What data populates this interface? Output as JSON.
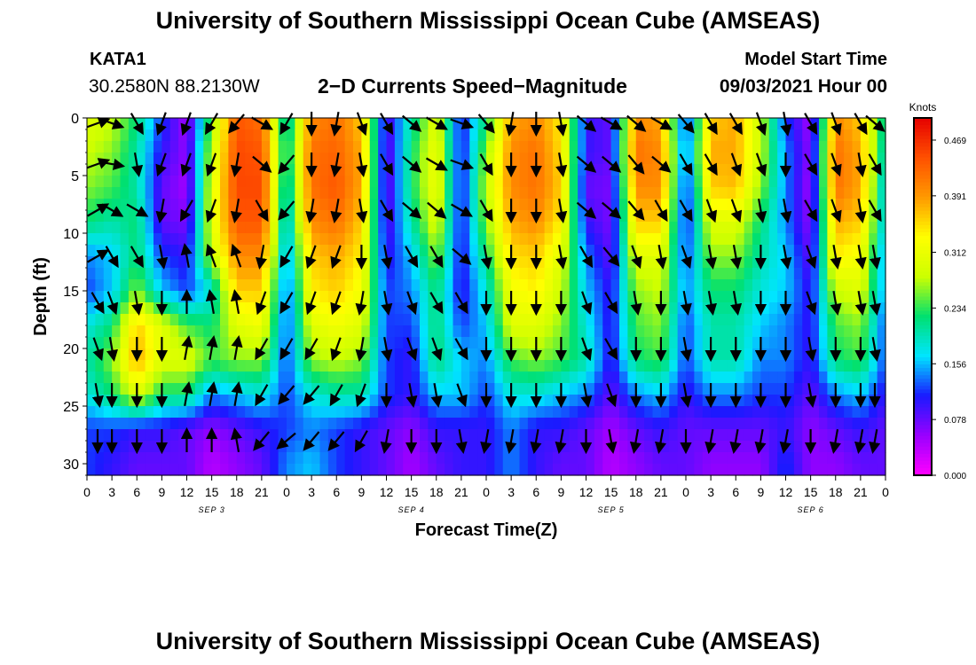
{
  "header": {
    "title": "University of Southern Mississippi Ocean Cube (AMSEAS)",
    "station": "KATA1",
    "coords": "30.2580N  88.2130W",
    "plot_title": "2−D Currents Speed−Magnitude",
    "model_label": "Model Start Time",
    "model_date": "09/03/2021 Hour 00"
  },
  "footer": {
    "title": "University of Southern Mississippi Ocean Cube (AMSEAS)"
  },
  "chart_data": {
    "type": "heatmap",
    "xlabel": "Forecast Time(Z)",
    "ylabel": "Depth (ft)",
    "x_ticks": [
      "0",
      "3",
      "6",
      "9",
      "12",
      "15",
      "18",
      "21",
      "0",
      "3",
      "6",
      "9",
      "12",
      "15",
      "18",
      "21",
      "0",
      "3",
      "6",
      "9",
      "12",
      "15",
      "18",
      "21",
      "0",
      "3",
      "6",
      "9",
      "12",
      "15",
      "18",
      "21",
      "0"
    ],
    "day_labels": [
      {
        "label": "SEP 3",
        "hour": 15
      },
      {
        "label": "SEP 4",
        "hour": 39
      },
      {
        "label": "SEP 5",
        "hour": 63
      },
      {
        "label": "SEP 6",
        "hour": 87
      }
    ],
    "x_range": [
      0,
      96
    ],
    "y_ticks": [
      0,
      5,
      10,
      15,
      20,
      25,
      30
    ],
    "y_range": [
      0,
      31
    ],
    "y_inverted": true,
    "colorbar": {
      "unit": "Knots",
      "ticks": [
        "0.469",
        "0.391",
        "0.312",
        "0.234",
        "0.156",
        "0.078",
        "0.000"
      ],
      "range": [
        0.0,
        0.5
      ],
      "colors": [
        "#ff00ff",
        "#9900ff",
        "#1a1aff",
        "#00e5ff",
        "#00e070",
        "#ccff00",
        "#ffff00",
        "#ff9900",
        "#ff5000",
        "#e60000"
      ]
    },
    "speed_grid": {
      "depths": [
        0,
        3,
        6,
        9,
        12,
        15,
        18,
        21,
        24,
        27,
        30
      ],
      "hours": [
        0,
        3,
        6,
        9,
        12,
        15,
        18,
        21,
        24,
        27,
        30,
        33,
        36,
        39,
        42,
        45,
        48,
        51,
        54,
        57,
        60,
        63,
        66,
        69,
        72,
        75,
        78,
        81,
        84,
        87,
        90,
        93,
        96
      ],
      "values": [
        [
          0.3,
          0.28,
          0.22,
          0.12,
          0.05,
          0.25,
          0.44,
          0.42,
          0.18,
          0.4,
          0.42,
          0.36,
          0.08,
          0.2,
          0.3,
          0.1,
          0.22,
          0.38,
          0.4,
          0.34,
          0.1,
          0.08,
          0.4,
          0.38,
          0.1,
          0.36,
          0.38,
          0.28,
          0.12,
          0.05,
          0.4,
          0.36,
          0.2
        ],
        [
          0.28,
          0.26,
          0.2,
          0.1,
          0.06,
          0.28,
          0.45,
          0.44,
          0.2,
          0.42,
          0.43,
          0.38,
          0.07,
          0.22,
          0.32,
          0.1,
          0.26,
          0.4,
          0.42,
          0.35,
          0.1,
          0.08,
          0.42,
          0.4,
          0.12,
          0.38,
          0.38,
          0.28,
          0.14,
          0.06,
          0.42,
          0.38,
          0.18
        ],
        [
          0.26,
          0.24,
          0.2,
          0.08,
          0.05,
          0.3,
          0.45,
          0.45,
          0.18,
          0.42,
          0.44,
          0.38,
          0.07,
          0.22,
          0.32,
          0.1,
          0.28,
          0.4,
          0.42,
          0.36,
          0.08,
          0.07,
          0.4,
          0.4,
          0.1,
          0.36,
          0.37,
          0.26,
          0.14,
          0.05,
          0.42,
          0.38,
          0.16
        ],
        [
          0.22,
          0.2,
          0.22,
          0.08,
          0.07,
          0.3,
          0.44,
          0.44,
          0.16,
          0.4,
          0.42,
          0.36,
          0.08,
          0.2,
          0.3,
          0.1,
          0.26,
          0.38,
          0.4,
          0.34,
          0.1,
          0.07,
          0.36,
          0.36,
          0.1,
          0.3,
          0.3,
          0.22,
          0.14,
          0.06,
          0.38,
          0.36,
          0.16
        ],
        [
          0.14,
          0.16,
          0.22,
          0.12,
          0.1,
          0.28,
          0.4,
          0.4,
          0.14,
          0.36,
          0.38,
          0.34,
          0.1,
          0.16,
          0.26,
          0.1,
          0.22,
          0.35,
          0.36,
          0.3,
          0.14,
          0.08,
          0.3,
          0.3,
          0.12,
          0.26,
          0.26,
          0.2,
          0.16,
          0.08,
          0.34,
          0.32,
          0.14
        ],
        [
          0.12,
          0.16,
          0.26,
          0.16,
          0.12,
          0.18,
          0.36,
          0.36,
          0.12,
          0.34,
          0.36,
          0.32,
          0.12,
          0.14,
          0.22,
          0.1,
          0.18,
          0.32,
          0.34,
          0.28,
          0.16,
          0.1,
          0.26,
          0.28,
          0.14,
          0.22,
          0.22,
          0.18,
          0.16,
          0.1,
          0.28,
          0.3,
          0.14
        ],
        [
          0.18,
          0.22,
          0.36,
          0.3,
          0.24,
          0.22,
          0.3,
          0.32,
          0.12,
          0.3,
          0.32,
          0.3,
          0.12,
          0.12,
          0.22,
          0.12,
          0.16,
          0.3,
          0.3,
          0.26,
          0.18,
          0.1,
          0.24,
          0.26,
          0.12,
          0.2,
          0.2,
          0.16,
          0.14,
          0.1,
          0.24,
          0.26,
          0.12
        ],
        [
          0.2,
          0.26,
          0.38,
          0.3,
          0.3,
          0.24,
          0.26,
          0.26,
          0.12,
          0.26,
          0.28,
          0.26,
          0.12,
          0.1,
          0.22,
          0.16,
          0.14,
          0.24,
          0.26,
          0.24,
          0.2,
          0.1,
          0.22,
          0.24,
          0.12,
          0.2,
          0.2,
          0.14,
          0.14,
          0.1,
          0.22,
          0.24,
          0.12
        ],
        [
          0.18,
          0.22,
          0.3,
          0.22,
          0.22,
          0.14,
          0.16,
          0.18,
          0.12,
          0.18,
          0.2,
          0.2,
          0.12,
          0.1,
          0.16,
          0.16,
          0.12,
          0.18,
          0.18,
          0.16,
          0.14,
          0.08,
          0.14,
          0.16,
          0.1,
          0.14,
          0.14,
          0.12,
          0.12,
          0.08,
          0.14,
          0.16,
          0.1
        ],
        [
          0.12,
          0.12,
          0.1,
          0.1,
          0.08,
          0.06,
          0.08,
          0.1,
          0.12,
          0.14,
          0.12,
          0.1,
          0.08,
          0.06,
          0.1,
          0.1,
          0.1,
          0.14,
          0.1,
          0.1,
          0.08,
          0.05,
          0.08,
          0.1,
          0.08,
          0.08,
          0.08,
          0.08,
          0.1,
          0.06,
          0.08,
          0.1,
          0.08
        ],
        [
          0.12,
          0.1,
          0.08,
          0.08,
          0.08,
          0.04,
          0.06,
          0.08,
          0.14,
          0.16,
          0.12,
          0.1,
          0.08,
          0.05,
          0.08,
          0.1,
          0.1,
          0.14,
          0.1,
          0.08,
          0.08,
          0.04,
          0.06,
          0.08,
          0.08,
          0.06,
          0.06,
          0.06,
          0.12,
          0.06,
          0.06,
          0.08,
          0.08
        ]
      ]
    },
    "vectors": {
      "hours": [
        0,
        3,
        6,
        9,
        12,
        15,
        18,
        21,
        24,
        27,
        30,
        33,
        36,
        39,
        42,
        45,
        48,
        51,
        54,
        57,
        60,
        63,
        66,
        69,
        72,
        75,
        78,
        81,
        84,
        87,
        90,
        93,
        96
      ],
      "depths": [
        0,
        4,
        8,
        12,
        16,
        20,
        24,
        28
      ],
      "angles_deg": [
        [
          20,
          -20,
          -60,
          -110,
          250,
          240,
          230,
          -30,
          -120,
          -90,
          -100,
          -70,
          -60,
          -40,
          -30,
          -20,
          -50,
          -100,
          -90,
          -80,
          -40,
          -30,
          -40,
          -30,
          -50,
          -60,
          -60,
          -70,
          -80,
          -60,
          -70,
          -60,
          -40
        ],
        [
          20,
          -10,
          -80,
          -110,
          250,
          250,
          260,
          -40,
          -130,
          -90,
          -100,
          -80,
          -60,
          -40,
          -30,
          -20,
          -60,
          -90,
          -90,
          -80,
          -40,
          -40,
          -50,
          -40,
          -60,
          -60,
          -70,
          -70,
          -90,
          -60,
          -70,
          -80,
          -60
        ],
        [
          30,
          -30,
          -30,
          -100,
          240,
          250,
          260,
          -60,
          -130,
          -100,
          -100,
          -80,
          -60,
          -40,
          -40,
          -30,
          -60,
          -90,
          -90,
          -80,
          -40,
          -40,
          -50,
          -60,
          -60,
          -70,
          -70,
          -80,
          -80,
          -60,
          -70,
          -80,
          -60
        ],
        [
          30,
          -60,
          -60,
          -80,
          100,
          110,
          110,
          -100,
          -120,
          -110,
          -110,
          -90,
          -80,
          -60,
          -60,
          -40,
          -80,
          -90,
          -90,
          -80,
          -60,
          -50,
          -70,
          -80,
          -70,
          -80,
          -80,
          -90,
          -80,
          -70,
          -80,
          -80,
          -80
        ],
        [
          -60,
          -70,
          -80,
          -90,
          90,
          100,
          100,
          -110,
          -120,
          -110,
          -110,
          -100,
          -80,
          -70,
          -60,
          -60,
          -90,
          -90,
          -90,
          -90,
          -70,
          -60,
          -80,
          -90,
          -80,
          -80,
          -80,
          -90,
          -90,
          -70,
          -80,
          -80,
          -80
        ],
        [
          -70,
          -80,
          -90,
          -90,
          80,
          80,
          80,
          -120,
          -120,
          -120,
          -110,
          -100,
          -80,
          -70,
          -70,
          -60,
          -90,
          -90,
          -90,
          -90,
          -70,
          -60,
          -90,
          -90,
          -80,
          -90,
          -90,
          -90,
          -90,
          -80,
          -90,
          -90,
          -80
        ],
        [
          -80,
          -90,
          -90,
          -90,
          80,
          80,
          80,
          -120,
          -130,
          -130,
          -120,
          -110,
          -90,
          -80,
          -80,
          -70,
          -90,
          -90,
          -90,
          -90,
          -80,
          -70,
          -90,
          -90,
          -80,
          -90,
          -90,
          -90,
          -90,
          -80,
          -90,
          -90,
          -90
        ],
        [
          -90,
          -90,
          -90,
          -90,
          90,
          90,
          100,
          -130,
          -140,
          -130,
          -130,
          -120,
          -100,
          -90,
          -90,
          -80,
          -100,
          -100,
          -100,
          -100,
          -90,
          -80,
          -100,
          -100,
          -90,
          -100,
          -100,
          -100,
          -100,
          -90,
          -100,
          -100,
          -100
        ]
      ]
    }
  }
}
